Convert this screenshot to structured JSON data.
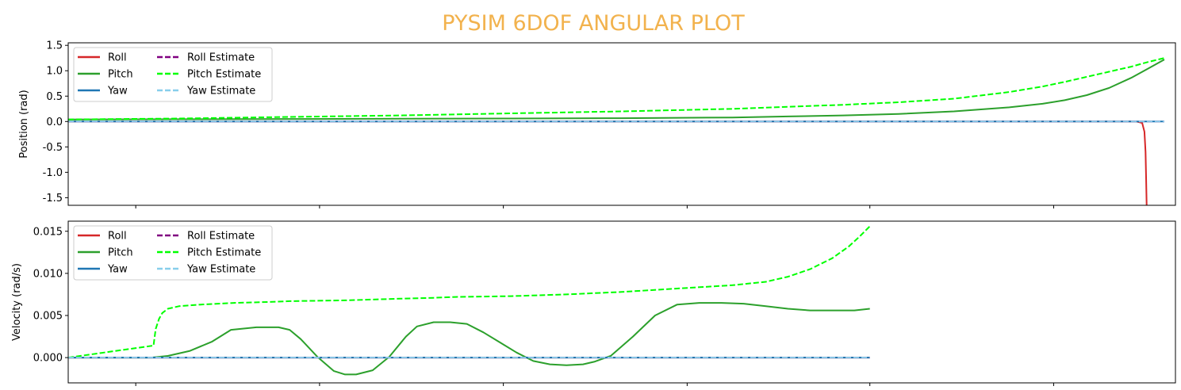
{
  "figure": {
    "title": "PYSIM 6DOF ANGULAR PLOT",
    "title_color": "#F2B24D"
  },
  "legend_entries": [
    {
      "name": "Roll",
      "color": "#d62728",
      "dash": "solid"
    },
    {
      "name": "Pitch",
      "color": "#2ca02c",
      "dash": "solid"
    },
    {
      "name": "Yaw",
      "color": "#1f77b4",
      "dash": "solid"
    },
    {
      "name": "Roll Estimate",
      "color": "#800080",
      "dash": "dashed"
    },
    {
      "name": "Pitch Estimate",
      "color": "#00ff00",
      "dash": "dashed"
    },
    {
      "name": "Yaw Estimate",
      "color": "#87ceeb",
      "dash": "dashed"
    }
  ],
  "chart_data": [
    {
      "type": "line",
      "ylabel": "Position (rad)",
      "xlim": [
        0,
        1
      ],
      "ylim": [
        -1.65,
        1.55
      ],
      "yticks": [
        "1.5",
        "1.0",
        "0.5",
        "0.0",
        "-0.5",
        "-1.0",
        "-1.5"
      ],
      "ytick_values": [
        1.5,
        1.0,
        0.5,
        0.0,
        -0.5,
        -1.0,
        -1.5
      ],
      "xtick_positions": [
        0.061,
        0.227,
        0.393,
        0.559,
        0.724,
        0.89
      ],
      "grid": false,
      "legend_placement": "upper-left",
      "series": [
        {
          "name": "Roll",
          "x": [
            0.0,
            0.5,
            0.9,
            0.965,
            0.97,
            0.972,
            0.973,
            0.9735,
            0.974
          ],
          "y": [
            0.0,
            0.0,
            0.0,
            0.0,
            -0.03,
            -0.2,
            -0.6,
            -1.1,
            -1.65
          ]
        },
        {
          "name": "Pitch",
          "x": [
            0.0,
            0.1,
            0.2,
            0.3,
            0.4,
            0.5,
            0.6,
            0.65,
            0.7,
            0.75,
            0.8,
            0.85,
            0.88,
            0.9,
            0.92,
            0.94,
            0.96,
            0.975,
            0.99
          ],
          "y": [
            0.04,
            0.045,
            0.05,
            0.055,
            0.06,
            0.065,
            0.08,
            0.1,
            0.12,
            0.15,
            0.2,
            0.28,
            0.35,
            0.42,
            0.52,
            0.66,
            0.86,
            1.04,
            1.22
          ]
        },
        {
          "name": "Yaw",
          "x": [
            0.0,
            0.99
          ],
          "y": [
            0.0,
            0.0
          ]
        },
        {
          "name": "Roll Estimate",
          "x": [
            0.0,
            0.99
          ],
          "y": [
            0.0,
            0.0
          ]
        },
        {
          "name": "Pitch Estimate",
          "x": [
            0.0,
            0.1,
            0.2,
            0.3,
            0.4,
            0.5,
            0.6,
            0.65,
            0.7,
            0.75,
            0.8,
            0.85,
            0.88,
            0.9,
            0.92,
            0.94,
            0.96,
            0.975,
            0.99
          ],
          "y": [
            0.04,
            0.06,
            0.09,
            0.12,
            0.16,
            0.2,
            0.25,
            0.29,
            0.33,
            0.38,
            0.45,
            0.58,
            0.69,
            0.78,
            0.88,
            0.98,
            1.08,
            1.17,
            1.25
          ]
        },
        {
          "name": "Yaw Estimate",
          "x": [
            0.0,
            0.99
          ],
          "y": [
            0.0,
            0.0
          ]
        }
      ]
    },
    {
      "type": "line",
      "ylabel": "Velocity (rad/s)",
      "xlim": [
        0,
        1
      ],
      "ylim": [
        -0.003,
        0.0162
      ],
      "yticks": [
        "0.015",
        "0.010",
        "0.005",
        "0.000"
      ],
      "ytick_values": [
        0.015,
        0.01,
        0.005,
        0.0
      ],
      "xtick_positions": [
        0.061,
        0.227,
        0.393,
        0.559,
        0.724,
        0.89
      ],
      "grid": false,
      "legend_placement": "upper-left",
      "series": [
        {
          "name": "Roll",
          "x": [
            0.0,
            0.724
          ],
          "y": [
            0.0,
            0.0
          ]
        },
        {
          "name": "Pitch",
          "x": [
            0.0,
            0.075,
            0.09,
            0.11,
            0.13,
            0.147,
            0.17,
            0.19,
            0.2,
            0.21,
            0.225,
            0.24,
            0.25,
            0.26,
            0.275,
            0.29,
            0.305,
            0.315,
            0.33,
            0.345,
            0.36,
            0.375,
            0.39,
            0.405,
            0.42,
            0.435,
            0.45,
            0.465,
            0.475,
            0.49,
            0.51,
            0.53,
            0.55,
            0.57,
            0.59,
            0.61,
            0.63,
            0.65,
            0.67,
            0.69,
            0.71,
            0.724
          ],
          "y": [
            0.0,
            0.0,
            0.0002,
            0.0008,
            0.0019,
            0.0033,
            0.0036,
            0.0036,
            0.0033,
            0.0022,
            0.0001,
            -0.0016,
            -0.002,
            -0.002,
            -0.0015,
            0.0001,
            0.0025,
            0.0037,
            0.0042,
            0.0042,
            0.004,
            0.003,
            0.0018,
            0.0006,
            -0.0004,
            -0.0008,
            -0.0009,
            -0.0008,
            -0.0005,
            0.0002,
            0.0025,
            0.005,
            0.0063,
            0.0065,
            0.0065,
            0.0064,
            0.0061,
            0.0058,
            0.0056,
            0.0056,
            0.0056,
            0.0058
          ]
        },
        {
          "name": "Yaw",
          "x": [
            0.0,
            0.724
          ],
          "y": [
            0.0,
            0.0
          ]
        },
        {
          "name": "Roll Estimate",
          "x": [
            0.0,
            0.724
          ],
          "y": [
            0.0,
            0.0
          ]
        },
        {
          "name": "Pitch Estimate",
          "x": [
            0.0,
            0.0755,
            0.077,
            0.079,
            0.082,
            0.085,
            0.09,
            0.1,
            0.12,
            0.15,
            0.18,
            0.2,
            0.25,
            0.3,
            0.33,
            0.35,
            0.4,
            0.45,
            0.5,
            0.55,
            0.6,
            0.63,
            0.65,
            0.67,
            0.69,
            0.705,
            0.715,
            0.724
          ],
          "y": [
            0.0,
            0.0014,
            0.0014,
            0.0034,
            0.0046,
            0.0053,
            0.0058,
            0.0061,
            0.0063,
            0.0065,
            0.0066,
            0.0067,
            0.0068,
            0.007,
            0.0071,
            0.0072,
            0.0073,
            0.0075,
            0.0078,
            0.0082,
            0.0086,
            0.009,
            0.0096,
            0.0105,
            0.0118,
            0.0132,
            0.0144,
            0.0156
          ]
        },
        {
          "name": "Yaw Estimate",
          "x": [
            0.0,
            0.724
          ],
          "y": [
            0.0,
            0.0
          ]
        }
      ]
    }
  ]
}
